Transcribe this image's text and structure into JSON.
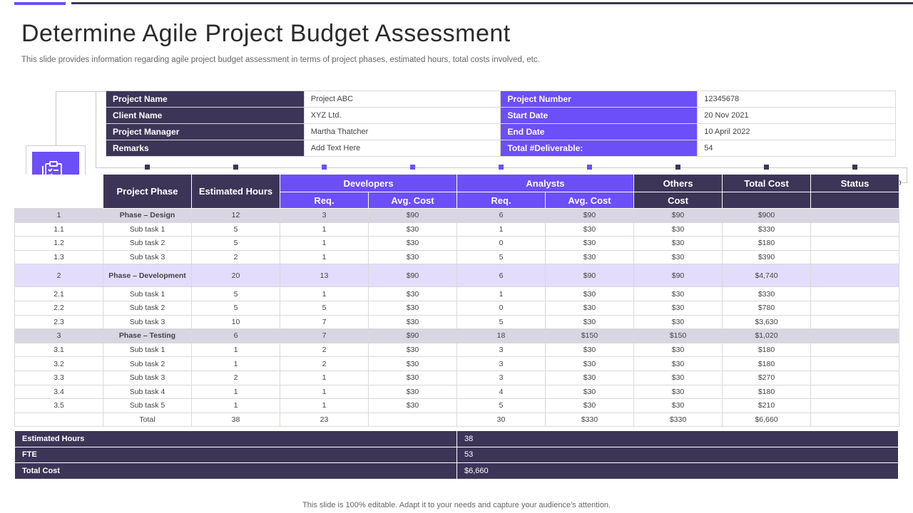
{
  "title": "Determine Agile Project Budget Assessment",
  "subtitle": "This slide provides information regarding agile project budget assessment in terms of project phases, estimated hours, total costs involved, etc.",
  "colors": {
    "dark": "#3d3557",
    "accent": "#6c4ff7",
    "phase_row": "#d9d5e3",
    "phase_row_alt": "#e3ddfb"
  },
  "icon": "clipboard-checklist-gear-icon",
  "info": [
    {
      "label": "Project Name",
      "value": "Project ABC",
      "label2": "Project Number",
      "value2": "12345678"
    },
    {
      "label": "Client Name",
      "value": "XYZ Ltd.",
      "label2": "Start Date",
      "value2": "20 Nov 2021"
    },
    {
      "label": "Project Manager",
      "value": "Martha Thatcher",
      "label2": "End Date",
      "value2": "10 April 2022"
    },
    {
      "label": "Remarks",
      "value": "Add Text Here",
      "label2": "Total #Deliverable:",
      "value2": "54"
    }
  ],
  "table": {
    "headers": {
      "project_phase": "Project Phase",
      "estimated_hours": "Estimated Hours",
      "developers": "Developers",
      "analysts": "Analysts",
      "others": "Others",
      "total_cost": "Total Cost",
      "status": "Status",
      "req": "Req.",
      "avg_cost": "Avg. Cost",
      "cost": "Cost"
    },
    "rows": [
      {
        "id": "1",
        "phase": "Phase – Design",
        "hours": "12",
        "dev_req": "3",
        "dev_cost": "$90",
        "an_req": "6",
        "an_cost": "$90",
        "others": "$90",
        "total": "$900",
        "status": "",
        "kind": "phase1"
      },
      {
        "id": "1.1",
        "phase": "Sub task 1",
        "hours": "5",
        "dev_req": "1",
        "dev_cost": "$30",
        "an_req": "1",
        "an_cost": "$30",
        "others": "$30",
        "total": "$330",
        "status": "",
        "kind": "sub"
      },
      {
        "id": "1.2",
        "phase": "Sub task 2",
        "hours": "5",
        "dev_req": "1",
        "dev_cost": "$30",
        "an_req": "0",
        "an_cost": "$30",
        "others": "$30",
        "total": "$180",
        "status": "",
        "kind": "sub"
      },
      {
        "id": "1.3",
        "phase": "Sub task 3",
        "hours": "2",
        "dev_req": "1",
        "dev_cost": "$30",
        "an_req": "5",
        "an_cost": "$30",
        "others": "$30",
        "total": "$390",
        "status": "",
        "kind": "sub"
      },
      {
        "id": "2",
        "phase": "Phase – Development",
        "hours": "20",
        "dev_req": "13",
        "dev_cost": "$90",
        "an_req": "6",
        "an_cost": "$90",
        "others": "$90",
        "total": "$4,740",
        "status": "",
        "kind": "phase2"
      },
      {
        "id": "2.1",
        "phase": "Sub task 1",
        "hours": "5",
        "dev_req": "1",
        "dev_cost": "$30",
        "an_req": "1",
        "an_cost": "$30",
        "others": "$30",
        "total": "$330",
        "status": "",
        "kind": "sub"
      },
      {
        "id": "2.2",
        "phase": "Sub task 2",
        "hours": "5",
        "dev_req": "5",
        "dev_cost": "$30",
        "an_req": "0",
        "an_cost": "$30",
        "others": "$30",
        "total": "$780",
        "status": "",
        "kind": "sub"
      },
      {
        "id": "2.3",
        "phase": "Sub task 3",
        "hours": "10",
        "dev_req": "7",
        "dev_cost": "$30",
        "an_req": "5",
        "an_cost": "$30",
        "others": "$30",
        "total": "$3,630",
        "status": "",
        "kind": "sub"
      },
      {
        "id": "3",
        "phase": "Phase – Testing",
        "hours": "6",
        "dev_req": "7",
        "dev_cost": "$90",
        "an_req": "18",
        "an_cost": "$150",
        "others": "$150",
        "total": "$1,020",
        "status": "",
        "kind": "phase1"
      },
      {
        "id": "3.1",
        "phase": "Sub task 1",
        "hours": "1",
        "dev_req": "2",
        "dev_cost": "$30",
        "an_req": "3",
        "an_cost": "$30",
        "others": "$30",
        "total": "$180",
        "status": "",
        "kind": "sub"
      },
      {
        "id": "3.2",
        "phase": "Sub task 2",
        "hours": "1",
        "dev_req": "2",
        "dev_cost": "$30",
        "an_req": "3",
        "an_cost": "$30",
        "others": "$30",
        "total": "$180",
        "status": "",
        "kind": "sub"
      },
      {
        "id": "3.3",
        "phase": "Sub task 3",
        "hours": "2",
        "dev_req": "1",
        "dev_cost": "$30",
        "an_req": "3",
        "an_cost": "$30",
        "others": "$30",
        "total": "$270",
        "status": "",
        "kind": "sub"
      },
      {
        "id": "3.4",
        "phase": "Sub task 4",
        "hours": "1",
        "dev_req": "1",
        "dev_cost": "$30",
        "an_req": "4",
        "an_cost": "$30",
        "others": "$30",
        "total": "$180",
        "status": "",
        "kind": "sub"
      },
      {
        "id": "3.5",
        "phase": "Sub task 5",
        "hours": "1",
        "dev_req": "1",
        "dev_cost": "$30",
        "an_req": "5",
        "an_cost": "$30",
        "others": "$30",
        "total": "$210",
        "status": "",
        "kind": "sub"
      },
      {
        "id": "",
        "phase": "Total",
        "hours": "38",
        "dev_req": "23",
        "dev_cost": "",
        "an_req": "30",
        "an_cost": "$330",
        "others": "$330",
        "total": "$6,660",
        "status": "",
        "kind": "sub"
      }
    ]
  },
  "summary": [
    {
      "label": "Estimated Hours",
      "value": "38"
    },
    {
      "label": "FTE",
      "value": "53"
    },
    {
      "label": "Total Cost",
      "value": "$6,660"
    }
  ],
  "footer": "This slide is 100% editable. Adapt it to your needs and capture your audience's attention."
}
